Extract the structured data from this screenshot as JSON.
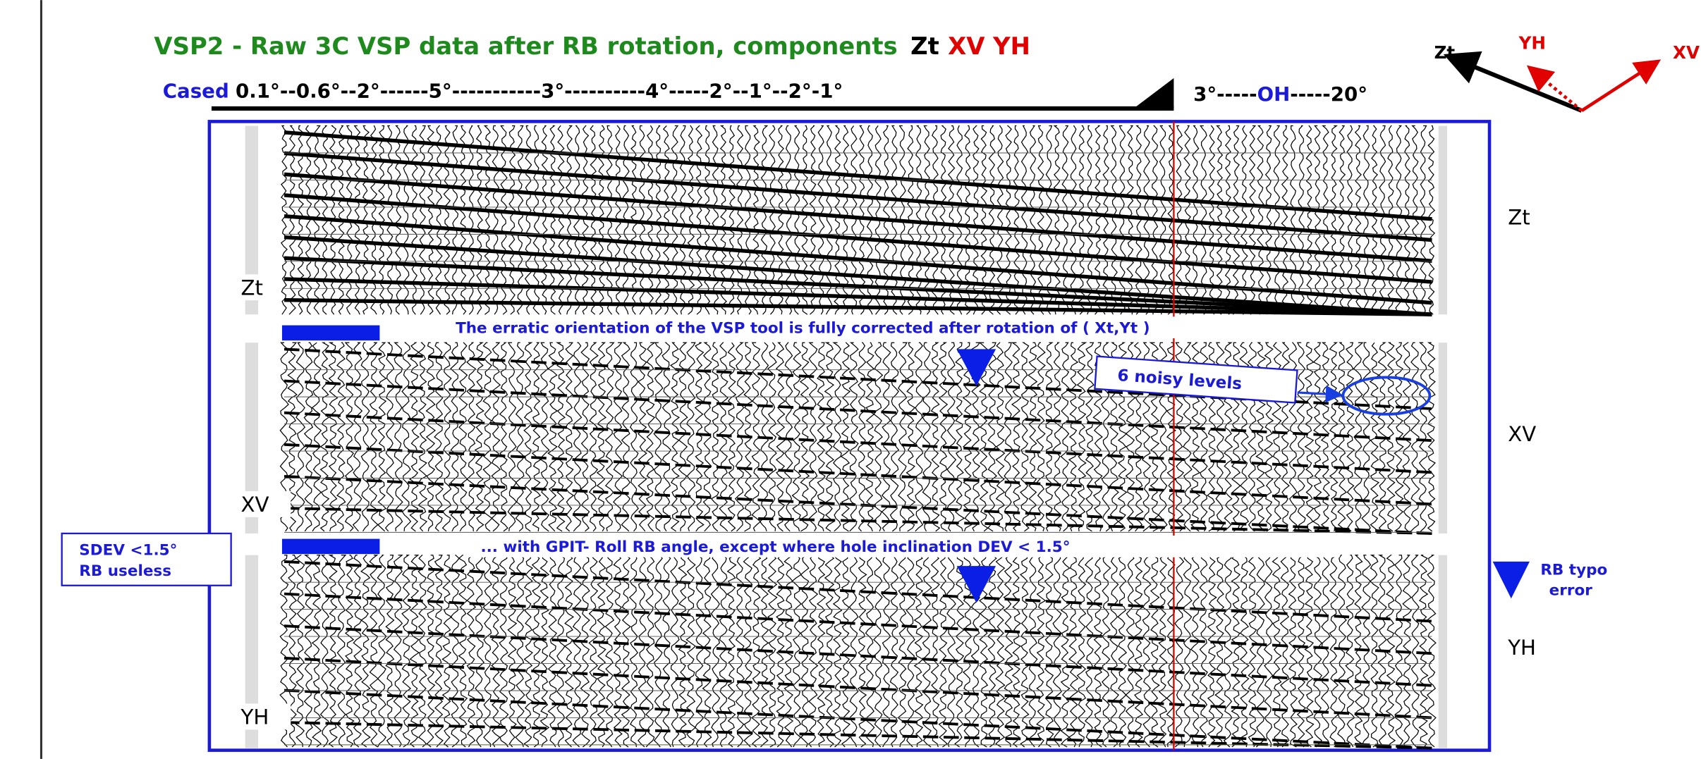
{
  "title": {
    "text": "VSP2 - Raw 3C VSP data after RB rotation, components",
    "component_zt": "Zt",
    "component_xv_yh": "XV YH"
  },
  "deviation": {
    "cased": "Cased",
    "cased_angles": "0.1°--0.6°--2°------5°-----------3°----------4°-----2°--1°--2°-1°",
    "oh_before": "3°-----",
    "oh": "OH",
    "oh_after": "-----20°"
  },
  "compass": {
    "zt": "Zt",
    "yh": "YH",
    "xv": "XV"
  },
  "panels": [
    {
      "label": "Zt",
      "side_label": "Zt"
    },
    {
      "label": "XV",
      "side_label": "XV"
    },
    {
      "label": "YH",
      "side_label": "YH"
    }
  ],
  "annotations": {
    "rotation_note": "The erratic orientation of  the VSP tool is fully corrected after rotation of ( Xt,Yt )",
    "noisy_levels": "6 noisy levels",
    "gpit_note": "... with GPIT- Roll RB angle, except where hole inclination  DEV < 1.5°",
    "sdev_line1": "SDEV <1.5°",
    "sdev_line2": "RB useless",
    "rb_typo_line1": "RB typo",
    "rb_typo_line2": "error"
  }
}
